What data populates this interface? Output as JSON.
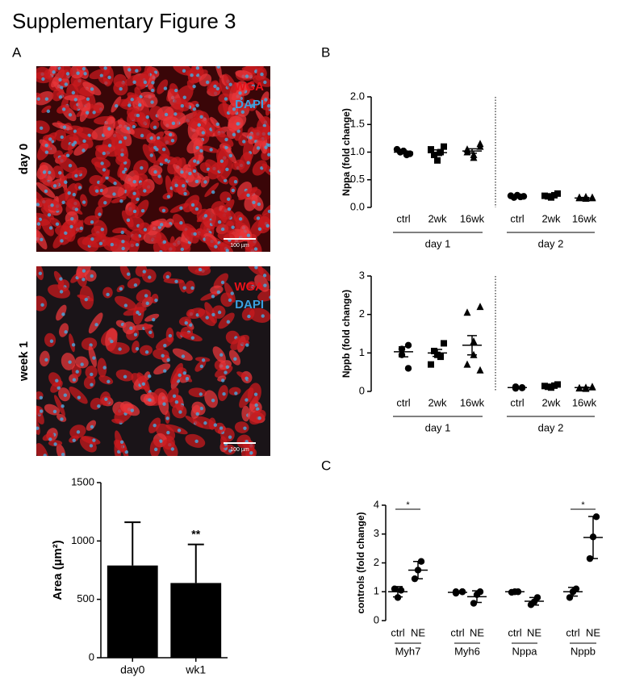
{
  "title": "Supplementary Figure 3",
  "panel_labels": [
    "A",
    "B",
    "C"
  ],
  "images": [
    {
      "row_label": "day 0",
      "stains": [
        "WGA",
        "DAPI"
      ],
      "scale_bar": "100 µm"
    },
    {
      "row_label": "week 1",
      "stains": [
        "WGA",
        "DAPI"
      ],
      "scale_bar": "100 µm"
    }
  ],
  "chart_data": [
    {
      "type": "bar",
      "ylabel": "Area (µm²)",
      "categories": [
        "day0",
        "wk1"
      ],
      "values": [
        790,
        640
      ],
      "errors": [
        370,
        330
      ],
      "annotations": [
        null,
        "**"
      ],
      "color": "#000000",
      "ylim": [
        0,
        1500
      ],
      "yticks": [
        0,
        500,
        1000,
        1500
      ]
    },
    {
      "type": "dot",
      "ylabel": "Nppa (fold change)",
      "ylim": [
        0,
        2
      ],
      "yticks": [
        {
          "value": 0,
          "label": "0.0"
        },
        {
          "value": 0.5,
          "label": "0.5"
        },
        {
          "value": 1,
          "label": "1.0"
        },
        {
          "value": 1.5,
          "label": "1.5"
        },
        {
          "value": 2,
          "label": "2.0"
        }
      ],
      "divider": true,
      "groups": [
        {
          "name": "day 1",
          "categories": [
            {
              "name": "ctrl",
              "marker": "circle",
              "points": [
                0.97,
                1.0,
                1.02,
                0.95,
                1.05
              ],
              "mean": 1.0,
              "error": 0.02
            },
            {
              "name": "2wk",
              "marker": "square",
              "points": [
                1.1,
                0.95,
                0.85,
                1.0,
                1.05
              ],
              "mean": 0.99,
              "error": 0.05
            },
            {
              "name": "16wk",
              "marker": "triangle",
              "points": [
                1.15,
                1.05,
                0.95,
                0.9,
                1.0,
                1.1
              ],
              "mean": 1.02,
              "error": 0.04
            }
          ]
        },
        {
          "name": "day 2",
          "categories": [
            {
              "name": "ctrl",
              "marker": "circle",
              "points": [
                0.2,
                0.18,
                0.22,
                0.19,
                0.21
              ],
              "mean": 0.2,
              "error": 0.01
            },
            {
              "name": "2wk",
              "marker": "square",
              "points": [
                0.25,
                0.2,
                0.18,
                0.22,
                0.21
              ],
              "mean": 0.21,
              "error": 0.01
            },
            {
              "name": "16wk",
              "marker": "triangle",
              "points": [
                0.17,
                0.18,
                0.16,
                0.19,
                0.17,
                0.18
              ],
              "mean": 0.17,
              "error": 0.01
            }
          ]
        }
      ]
    },
    {
      "type": "dot",
      "ylabel": "Nppb (fold change)",
      "ylim": [
        0,
        3
      ],
      "yticks": [
        0,
        1,
        2,
        3
      ],
      "divider": true,
      "groups": [
        {
          "name": "day 1",
          "categories": [
            {
              "name": "ctrl",
              "marker": "circle",
              "points": [
                1.2,
                1.1,
                0.95,
                0.6
              ],
              "mean": 1.03,
              "error": 0.13
            },
            {
              "name": "2wk",
              "marker": "square",
              "points": [
                1.25,
                1.05,
                0.95,
                0.9,
                0.7
              ],
              "mean": 1.0,
              "error": 0.09
            },
            {
              "name": "16wk",
              "marker": "triangle",
              "points": [
                2.2,
                2.05,
                1.3,
                0.95,
                0.7,
                0.55
              ],
              "mean": 1.2,
              "error": 0.25
            }
          ]
        },
        {
          "name": "day 2",
          "categories": [
            {
              "name": "ctrl",
              "marker": "circle",
              "points": [
                0.1,
                0.08,
                0.12,
                0.09
              ],
              "mean": 0.1,
              "error": 0.01
            },
            {
              "name": "2wk",
              "marker": "square",
              "points": [
                0.18,
                0.12,
                0.1,
                0.15,
                0.14
              ],
              "mean": 0.14,
              "error": 0.02
            },
            {
              "name": "16wk",
              "marker": "triangle",
              "points": [
                0.12,
                0.08,
                0.1,
                0.07,
                0.09,
                0.11
              ],
              "mean": 0.1,
              "error": 0.01
            }
          ]
        }
      ]
    },
    {
      "type": "dot",
      "ylabel": "controls (fold change)",
      "ylim": [
        0,
        4
      ],
      "yticks": [
        0,
        1,
        2,
        3,
        4
      ],
      "divider": false,
      "group_line": "above",
      "groups": [
        {
          "name": "Myh7",
          "significance": "*",
          "categories": [
            {
              "name": "ctrl",
              "marker": "circle",
              "points": [
                1.05,
                0.8,
                1.1
              ],
              "mean": 1.0,
              "error": 0.18
            },
            {
              "name": "NE",
              "marker": "circle",
              "points": [
                2.05,
                1.75,
                1.45
              ],
              "mean": 1.75,
              "error": 0.3
            }
          ]
        },
        {
          "name": "Myh6",
          "categories": [
            {
              "name": "ctrl",
              "marker": "circle",
              "points": [
                1.0,
                0.95,
                1.0,
                1.0
              ],
              "mean": 0.98,
              "error": 0.03
            },
            {
              "name": "NE",
              "marker": "circle",
              "points": [
                1.0,
                0.9,
                0.6
              ],
              "mean": 0.83,
              "error": 0.2
            }
          ]
        },
        {
          "name": "Nppa",
          "categories": [
            {
              "name": "ctrl",
              "marker": "circle",
              "points": [
                1.0,
                1.0,
                0.98
              ],
              "mean": 1.0,
              "error": 0.02
            },
            {
              "name": "NE",
              "marker": "circle",
              "points": [
                0.8,
                0.65,
                0.55
              ],
              "mean": 0.67,
              "error": 0.13
            }
          ]
        },
        {
          "name": "Nppb",
          "significance": "*",
          "categories": [
            {
              "name": "ctrl",
              "marker": "circle",
              "points": [
                1.1,
                1.0,
                0.8
              ],
              "mean": 1.0,
              "error": 0.15
            },
            {
              "name": "NE",
              "marker": "circle",
              "points": [
                3.6,
                2.9,
                2.15
              ],
              "mean": 2.88,
              "error": 0.73
            }
          ]
        }
      ]
    }
  ]
}
